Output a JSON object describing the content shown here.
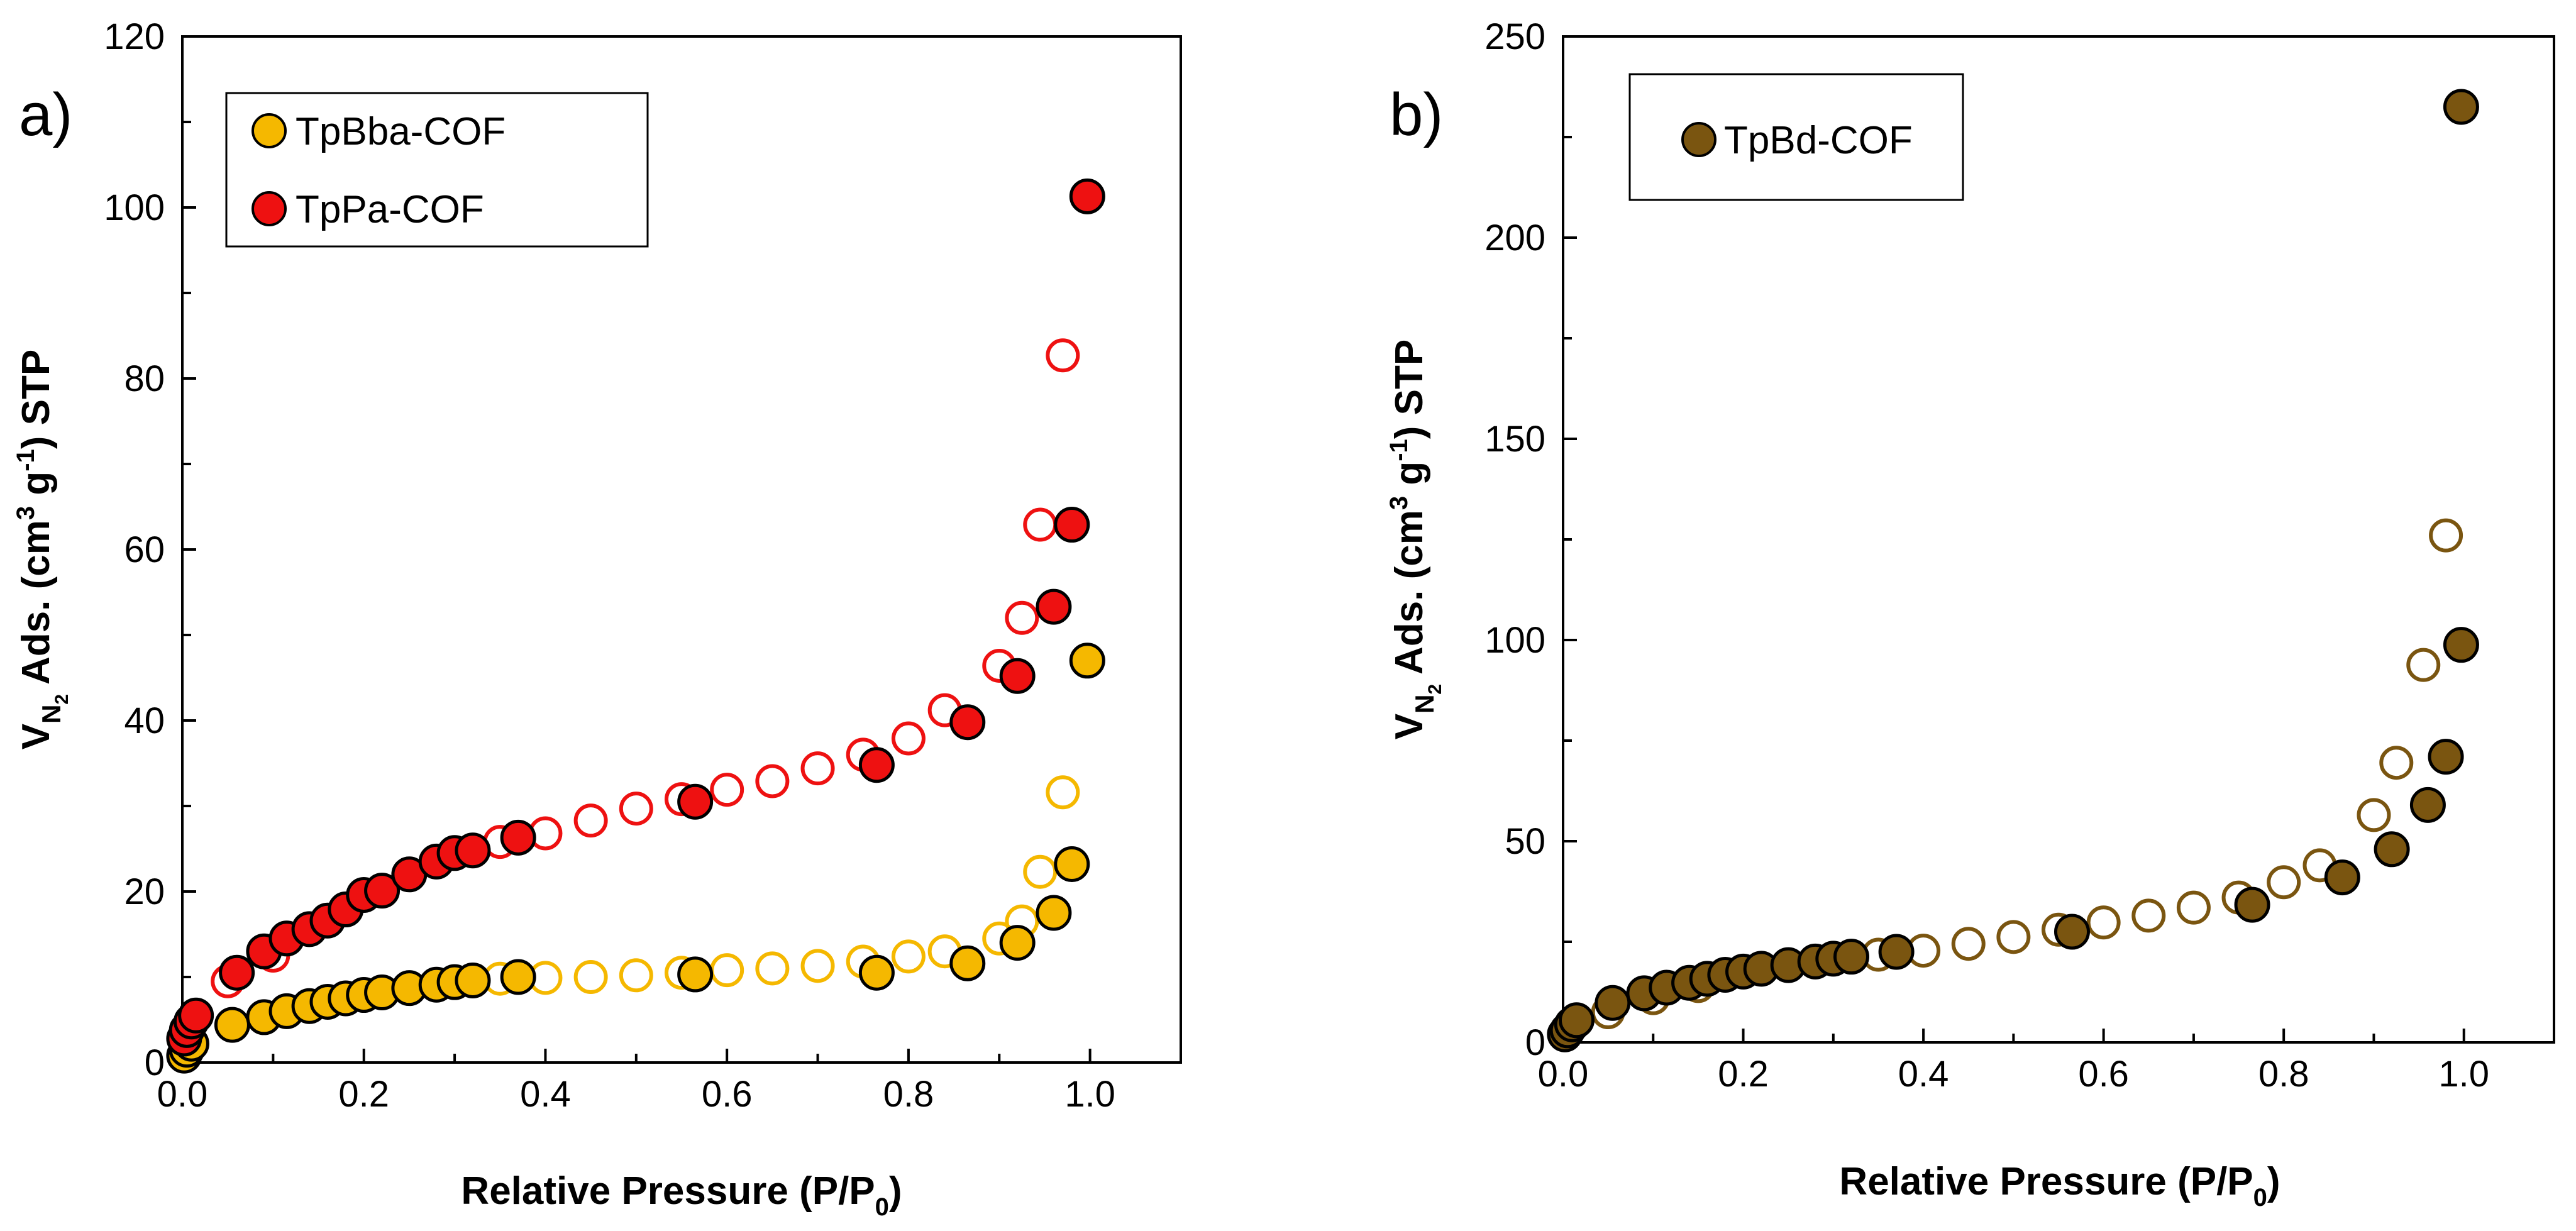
{
  "chart_data": [
    {
      "type": "scatter",
      "panel_label": "a)",
      "xlabel": "Relative Pressure (P/P0)",
      "xlabel_main": "Relative Pressure (P/P",
      "xlabel_sub": "0",
      "xlabel_end": ")",
      "ylabel": "VN2 Ads. (cm3 g-1) STP",
      "ylabel_v": "V",
      "ylabel_vsub": "N",
      "ylabel_vsub2": "2",
      "ylabel_mid": " Ads. (cm",
      "ylabel_sup3": "3",
      "ylabel_g": " g",
      "ylabel_supm1": "-1",
      "ylabel_end": ") STP",
      "xlim": [
        0,
        1.1
      ],
      "ylim": [
        0,
        120
      ],
      "x_ticks": [
        "0.0",
        "0.2",
        "0.4",
        "0.6",
        "0.8",
        "1.0"
      ],
      "y_ticks": [
        "0",
        "20",
        "40",
        "60",
        "80",
        "100",
        "120"
      ],
      "legend_position": "top-left",
      "series": [
        {
          "name": "TpBba-COF",
          "color": "#f5b800",
          "adsorption": [
            [
              0.002,
              0.8
            ],
            [
              0.005,
              1.5
            ],
            [
              0.01,
              2.2
            ],
            [
              0.055,
              4.4
            ],
            [
              0.09,
              5.3
            ],
            [
              0.115,
              6.0
            ],
            [
              0.14,
              6.6
            ],
            [
              0.16,
              7.1
            ],
            [
              0.18,
              7.5
            ],
            [
              0.2,
              7.9
            ],
            [
              0.22,
              8.2
            ],
            [
              0.25,
              8.7
            ],
            [
              0.28,
              9.1
            ],
            [
              0.3,
              9.4
            ],
            [
              0.32,
              9.6
            ],
            [
              0.37,
              10.0
            ],
            [
              0.565,
              10.3
            ],
            [
              0.765,
              10.5
            ],
            [
              0.865,
              11.6
            ],
            [
              0.92,
              14.0
            ],
            [
              0.96,
              17.5
            ],
            [
              0.98,
              23.2
            ],
            [
              0.997,
              47.0
            ]
          ],
          "desorption": [
            [
              0.35,
              9.8
            ],
            [
              0.4,
              9.9
            ],
            [
              0.45,
              10.0
            ],
            [
              0.5,
              10.2
            ],
            [
              0.55,
              10.5
            ],
            [
              0.6,
              10.8
            ],
            [
              0.65,
              11.0
            ],
            [
              0.7,
              11.3
            ],
            [
              0.75,
              11.8
            ],
            [
              0.8,
              12.4
            ],
            [
              0.84,
              13.0
            ],
            [
              0.9,
              14.5
            ],
            [
              0.925,
              16.5
            ],
            [
              0.945,
              22.3
            ],
            [
              0.97,
              31.6
            ]
          ]
        },
        {
          "name": "TpPa-COF",
          "color": "#ee1111",
          "adsorption": [
            [
              0.002,
              2.8
            ],
            [
              0.005,
              3.8
            ],
            [
              0.01,
              4.8
            ],
            [
              0.015,
              5.5
            ],
            [
              0.06,
              10.5
            ],
            [
              0.09,
              13.0
            ],
            [
              0.115,
              14.5
            ],
            [
              0.14,
              15.6
            ],
            [
              0.16,
              16.6
            ],
            [
              0.18,
              17.9
            ],
            [
              0.2,
              19.6
            ],
            [
              0.22,
              20.1
            ],
            [
              0.25,
              22.0
            ],
            [
              0.28,
              23.5
            ],
            [
              0.3,
              24.5
            ],
            [
              0.32,
              24.8
            ],
            [
              0.37,
              26.3
            ],
            [
              0.565,
              30.5
            ],
            [
              0.765,
              34.8
            ],
            [
              0.865,
              39.8
            ],
            [
              0.92,
              45.2
            ],
            [
              0.96,
              53.3
            ],
            [
              0.98,
              62.9
            ],
            [
              0.997,
              101.3
            ]
          ],
          "desorption": [
            [
              0.05,
              9.5
            ],
            [
              0.1,
              12.5
            ],
            [
              0.35,
              25.8
            ],
            [
              0.4,
              26.8
            ],
            [
              0.45,
              28.3
            ],
            [
              0.5,
              29.7
            ],
            [
              0.55,
              30.8
            ],
            [
              0.6,
              31.9
            ],
            [
              0.65,
              32.9
            ],
            [
              0.7,
              34.4
            ],
            [
              0.75,
              36.0
            ],
            [
              0.8,
              37.9
            ],
            [
              0.84,
              41.2
            ],
            [
              0.9,
              46.4
            ],
            [
              0.925,
              52.0
            ],
            [
              0.945,
              62.9
            ],
            [
              0.97,
              82.7
            ]
          ]
        }
      ]
    },
    {
      "type": "scatter",
      "panel_label": "b)",
      "xlabel": "Relative Pressure (P/P0)",
      "xlabel_main": "Relative Pressure (P/P",
      "xlabel_sub": "0",
      "xlabel_end": ")",
      "ylabel": "VN2 Ads. (cm3 g-1) STP",
      "ylabel_v": "V",
      "ylabel_vsub": "N",
      "ylabel_vsub2": "2",
      "ylabel_mid": " Ads. (cm",
      "ylabel_sup3": "3",
      "ylabel_g": " g",
      "ylabel_supm1": "-1",
      "ylabel_end": ") STP",
      "xlim": [
        0,
        1.1
      ],
      "ylim": [
        0,
        250
      ],
      "x_ticks": [
        "0.0",
        "0.2",
        "0.4",
        "0.6",
        "0.8",
        "1.0"
      ],
      "y_ticks": [
        "0",
        "50",
        "100",
        "150",
        "200",
        "250"
      ],
      "legend_position": "top-left",
      "series": [
        {
          "name": "TpBd-COF",
          "color": "#7a5510",
          "adsorption": [
            [
              0.002,
              2.0
            ],
            [
              0.005,
              3.0
            ],
            [
              0.01,
              4.5
            ],
            [
              0.015,
              5.5
            ],
            [
              0.055,
              9.8
            ],
            [
              0.09,
              12.2
            ],
            [
              0.115,
              13.6
            ],
            [
              0.14,
              14.8
            ],
            [
              0.16,
              15.8
            ],
            [
              0.18,
              16.8
            ],
            [
              0.2,
              17.6
            ],
            [
              0.22,
              18.3
            ],
            [
              0.25,
              19.2
            ],
            [
              0.28,
              20.1
            ],
            [
              0.3,
              20.8
            ],
            [
              0.32,
              21.3
            ],
            [
              0.37,
              22.5
            ],
            [
              0.565,
              27.5
            ],
            [
              0.765,
              34.2
            ],
            [
              0.865,
              41.0
            ],
            [
              0.92,
              48.0
            ],
            [
              0.96,
              59.0
            ],
            [
              0.98,
              71.0
            ],
            [
              0.997,
              98.8
            ],
            [
              0.997,
              232.5
            ]
          ],
          "desorption": [
            [
              0.05,
              7.5
            ],
            [
              0.1,
              11.0
            ],
            [
              0.15,
              14.0
            ],
            [
              0.35,
              21.8
            ],
            [
              0.4,
              22.8
            ],
            [
              0.45,
              24.5
            ],
            [
              0.5,
              26.2
            ],
            [
              0.55,
              28.0
            ],
            [
              0.6,
              29.8
            ],
            [
              0.65,
              31.5
            ],
            [
              0.7,
              33.5
            ],
            [
              0.75,
              36.0
            ],
            [
              0.8,
              39.8
            ],
            [
              0.84,
              44.0
            ],
            [
              0.9,
              56.5
            ],
            [
              0.925,
              69.5
            ],
            [
              0.955,
              93.8
            ],
            [
              0.98,
              126.0
            ]
          ]
        }
      ]
    }
  ]
}
